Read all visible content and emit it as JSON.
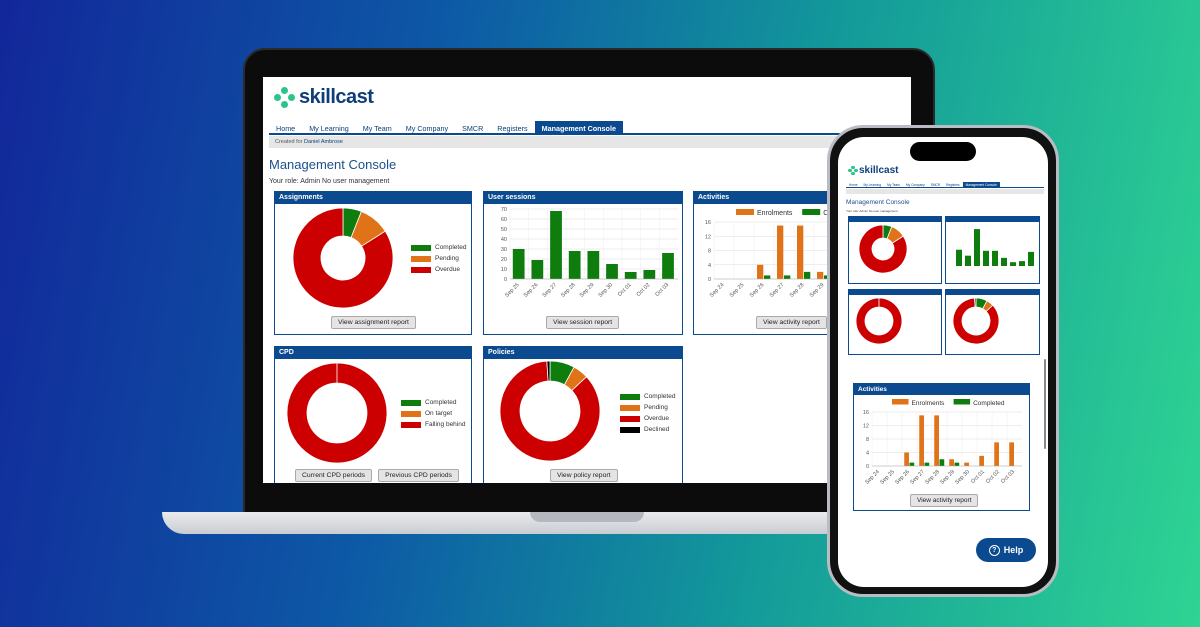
{
  "logo": {
    "text": "skillcast"
  },
  "nav": {
    "items": [
      "Home",
      "My Learning",
      "My Team",
      "My Company",
      "SMCR",
      "Registers",
      "Management Console"
    ],
    "active": 6
  },
  "subbar": {
    "prefix": "Created for",
    "user": "Daniel Ambrose"
  },
  "page": {
    "title": "Management Console",
    "role": "Your role: Admin No user management"
  },
  "panels": {
    "assignments": {
      "title": "Assignments",
      "button": "View assignment report",
      "legend": [
        "Completed",
        "Pending",
        "Overdue"
      ]
    },
    "sessions": {
      "title": "User sessions",
      "button": "View session report"
    },
    "activities": {
      "title": "Activities",
      "button": "View activity report",
      "legend": [
        "Enrolments",
        "Co"
      ]
    },
    "cpd": {
      "title": "CPD",
      "buttons": [
        "Current CPD periods",
        "Previous CPD periods"
      ],
      "legend": [
        "Completed",
        "On target",
        "Falling behind"
      ]
    },
    "policies": {
      "title": "Policies",
      "button": "View policy report",
      "legend": [
        "Completed",
        "Pending",
        "Overdue",
        "Declined"
      ]
    }
  },
  "phone": {
    "activities": {
      "title": "Activities",
      "legend": [
        "Enrolments",
        "Completed"
      ],
      "button": "View activity report"
    },
    "help": "Help"
  },
  "colors": {
    "green": "#0e7d0e",
    "orange": "#e07217",
    "red": "#cc0000",
    "black": "#000000",
    "blue": "#0b4a8f"
  },
  "chart_data": [
    {
      "type": "pie",
      "title": "Assignments",
      "labels": [
        "Completed",
        "Pending",
        "Overdue"
      ],
      "values": [
        6,
        10,
        84
      ],
      "donut": true
    },
    {
      "type": "bar",
      "title": "User sessions",
      "categories": [
        "Sep 25",
        "Sep 26",
        "Sep 27",
        "Sep 28",
        "Sep 29",
        "Sep 30",
        "Oct 01",
        "Oct 02",
        "Oct 03"
      ],
      "values": [
        30,
        19,
        68,
        28,
        28,
        15,
        7,
        9,
        26
      ],
      "ylim": [
        0,
        70
      ],
      "yticks": [
        0,
        10,
        20,
        30,
        40,
        50,
        60,
        70
      ]
    },
    {
      "type": "bar",
      "title": "Activities",
      "categories": [
        "Sep 24",
        "Sep 25",
        "Sep 26",
        "Sep 27",
        "Sep 28",
        "Sep 29",
        "Sep 30",
        "Oct 01",
        "Oct 02",
        "Oct 03"
      ],
      "series": [
        {
          "name": "Enrolments",
          "values": [
            0,
            0,
            4,
            15,
            15,
            2,
            1,
            3,
            7,
            7
          ]
        },
        {
          "name": "Completed",
          "values": [
            0,
            0,
            1,
            1,
            2,
            1,
            0,
            0,
            0,
            0
          ]
        }
      ],
      "ylim": [
        0,
        16
      ],
      "yticks": [
        0,
        4,
        8,
        12,
        16
      ]
    },
    {
      "type": "pie",
      "title": "CPD",
      "labels": [
        "Completed",
        "On target",
        "Falling behind"
      ],
      "values": [
        0,
        0,
        100
      ],
      "donut": true
    },
    {
      "type": "pie",
      "title": "Policies",
      "labels": [
        "Completed",
        "Pending",
        "Overdue",
        "Declined"
      ],
      "values": [
        8,
        5,
        86,
        1
      ],
      "donut": true
    }
  ]
}
